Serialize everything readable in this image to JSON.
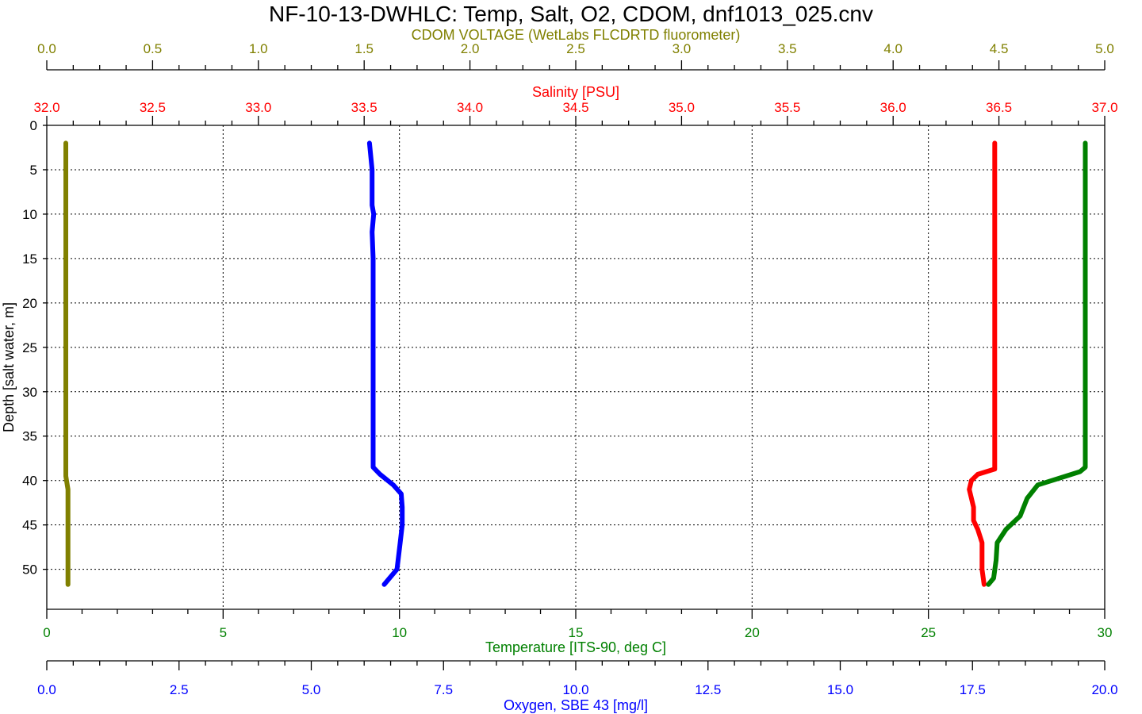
{
  "chart_data": {
    "type": "line",
    "title": "NF-10-13-DWHLC: Temp, Salt, O2, CDOM, dnf1013_025.cnv",
    "y_axis": {
      "label": "Depth [salt water, m]",
      "range": [
        0,
        54.5
      ],
      "ticks": [
        0,
        5,
        10,
        15,
        20,
        25,
        30,
        35,
        40,
        45,
        50
      ],
      "tick_labels": [
        "0",
        "5",
        "10",
        "15",
        "20",
        "25",
        "30",
        "35",
        "40",
        "45",
        "50"
      ],
      "inverted": true,
      "color": "#000000"
    },
    "x_axes": [
      {
        "id": "cdom",
        "position": "top-outer",
        "label": "CDOM VOLTAGE (WetLabs FLCDRTD fluorometer)",
        "range": [
          0.0,
          5.0
        ],
        "ticks": [
          0.0,
          0.5,
          1.0,
          1.5,
          2.0,
          2.5,
          3.0,
          3.5,
          4.0,
          4.5,
          5.0
        ],
        "tick_labels": [
          "0.0",
          "0.5",
          "1.0",
          "1.5",
          "2.0",
          "2.5",
          "3.0",
          "3.5",
          "4.0",
          "4.5",
          "5.0"
        ],
        "minor_per_major": 3,
        "color": "#808000"
      },
      {
        "id": "salinity",
        "position": "top-inner",
        "label": "Salinity [PSU]",
        "range": [
          32.0,
          37.0
        ],
        "ticks": [
          32.0,
          32.5,
          33.0,
          33.5,
          34.0,
          34.5,
          35.0,
          35.5,
          36.0,
          36.5,
          37.0
        ],
        "tick_labels": [
          "32.0",
          "32.5",
          "33.0",
          "33.5",
          "34.0",
          "34.5",
          "35.0",
          "35.5",
          "36.0",
          "36.5",
          "37.0"
        ],
        "minor_per_major": 3,
        "color": "#ff0000"
      },
      {
        "id": "temperature",
        "position": "bottom-inner",
        "label": "Temperature [ITS-90, deg C]",
        "range": [
          0,
          30
        ],
        "ticks": [
          0,
          5,
          10,
          15,
          20,
          25,
          30
        ],
        "tick_labels": [
          "0",
          "5",
          "10",
          "15",
          "20",
          "25",
          "30"
        ],
        "minor_per_major": 4,
        "color": "#008000"
      },
      {
        "id": "oxygen",
        "position": "bottom-outer",
        "label": "Oxygen, SBE 43 [mg/l]",
        "range": [
          0.0,
          20.0
        ],
        "ticks": [
          0.0,
          2.5,
          5.0,
          7.5,
          10.0,
          12.5,
          15.0,
          17.5,
          20.0
        ],
        "tick_labels": [
          "0.0",
          "2.5",
          "5.0",
          "7.5",
          "10.0",
          "12.5",
          "15.0",
          "17.5",
          "20.0"
        ],
        "minor_per_major": 4,
        "color": "#0000ff"
      }
    ],
    "grid": true,
    "series": [
      {
        "axis": "cdom",
        "color": "#808000",
        "points": [
          [
            0.09,
            2
          ],
          [
            0.09,
            10
          ],
          [
            0.09,
            20
          ],
          [
            0.09,
            30
          ],
          [
            0.09,
            38
          ],
          [
            0.09,
            39.5
          ],
          [
            0.1,
            41
          ],
          [
            0.1,
            43
          ],
          [
            0.1,
            45
          ],
          [
            0.1,
            48
          ],
          [
            0.1,
            50
          ],
          [
            0.1,
            51.7
          ]
        ]
      },
      {
        "axis": "oxygen",
        "color": "#0000ff",
        "points": [
          [
            6.1,
            2
          ],
          [
            6.15,
            5
          ],
          [
            6.15,
            9
          ],
          [
            6.18,
            10
          ],
          [
            6.15,
            12
          ],
          [
            6.17,
            15
          ],
          [
            6.17,
            20
          ],
          [
            6.17,
            30
          ],
          [
            6.17,
            37
          ],
          [
            6.17,
            38.5
          ],
          [
            6.3,
            39.3
          ],
          [
            6.55,
            40.5
          ],
          [
            6.7,
            41.5
          ],
          [
            6.72,
            43
          ],
          [
            6.72,
            45
          ],
          [
            6.68,
            47
          ],
          [
            6.62,
            50
          ],
          [
            6.38,
            51.7
          ]
        ]
      },
      {
        "axis": "salinity",
        "color": "#ff0000",
        "points": [
          [
            36.48,
            2
          ],
          [
            36.48,
            10
          ],
          [
            36.48,
            20
          ],
          [
            36.48,
            30
          ],
          [
            36.48,
            37
          ],
          [
            36.48,
            38.7
          ],
          [
            36.4,
            39.3
          ],
          [
            36.37,
            40
          ],
          [
            36.36,
            41
          ],
          [
            36.37,
            42
          ],
          [
            36.38,
            43
          ],
          [
            36.38,
            44.5
          ],
          [
            36.4,
            45.5
          ],
          [
            36.42,
            47
          ],
          [
            36.42,
            50
          ],
          [
            36.43,
            51.7
          ]
        ]
      },
      {
        "axis": "temperature",
        "color": "#008000",
        "points": [
          [
            29.45,
            2
          ],
          [
            29.45,
            5
          ],
          [
            29.45,
            15
          ],
          [
            29.45,
            25
          ],
          [
            29.45,
            35
          ],
          [
            29.45,
            38.5
          ],
          [
            29.3,
            39
          ],
          [
            28.9,
            39.5
          ],
          [
            28.1,
            40.5
          ],
          [
            27.8,
            42
          ],
          [
            27.6,
            44
          ],
          [
            27.2,
            45.5
          ],
          [
            26.95,
            47
          ],
          [
            26.92,
            49
          ],
          [
            26.85,
            51
          ],
          [
            26.7,
            51.7
          ]
        ]
      }
    ]
  }
}
